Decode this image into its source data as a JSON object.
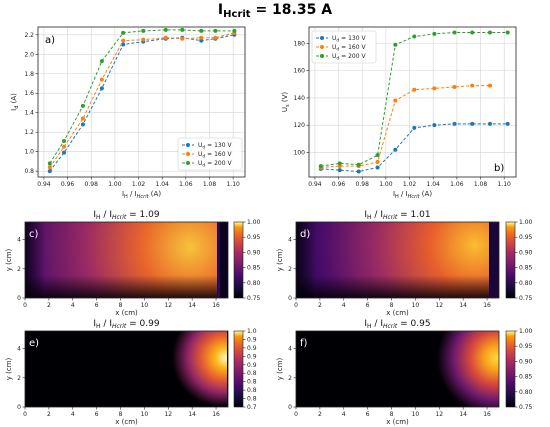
{
  "figure": {
    "title_main": "I",
    "title_sub": "Hcrit",
    "title_rest": " = 18.35 A"
  },
  "chart_data": [
    {
      "type": "line",
      "panel": "a)",
      "xlabel": {
        "main": "I",
        "sub1": "H",
        "mid": " / I",
        "sub2": "Hcrit",
        "rest": " (A)"
      },
      "ylabel": {
        "main": "I",
        "sub": "d",
        "rest": " (A)"
      },
      "xlim": [
        0.935,
        1.11
      ],
      "ylim": [
        0.74,
        2.28
      ],
      "xticks": [
        0.94,
        0.96,
        0.98,
        1.0,
        1.02,
        1.04,
        1.06,
        1.08,
        1.1
      ],
      "yticks": [
        0.8,
        1.0,
        1.2,
        1.4,
        1.6,
        1.8,
        2.0,
        2.2
      ],
      "xtick_labels": [
        "0.94",
        "0.96",
        "0.98",
        "1.00",
        "1.02",
        "1.04",
        "1.06",
        "1.08",
        "1.10"
      ],
      "ytick_labels": [
        "0.8",
        "1.0",
        "1.2",
        "1.4",
        "1.6",
        "1.8",
        "2.0",
        "2.2"
      ],
      "grid": true,
      "legend_position": "bottom-right",
      "x": [
        0.945,
        0.957,
        0.973,
        0.989,
        1.007,
        1.024,
        1.043,
        1.057,
        1.073,
        1.085,
        1.101
      ],
      "series": [
        {
          "name": "U",
          "sub": "d",
          "rest": " = 130 V",
          "color": "#1f77b4",
          "values": [
            0.8,
            0.99,
            1.28,
            1.65,
            2.1,
            2.13,
            2.16,
            2.17,
            2.14,
            2.16,
            2.2
          ]
        },
        {
          "name": "U",
          "sub": "d",
          "rest": " = 160 V",
          "color": "#ff7f0e",
          "values": [
            0.84,
            1.05,
            1.34,
            1.74,
            2.14,
            2.15,
            2.17,
            2.16,
            2.17,
            2.17,
            2.22
          ]
        },
        {
          "name": "U",
          "sub": "d",
          "rest": " = 200 V",
          "color": "#2ca02c",
          "values": [
            0.88,
            1.11,
            1.47,
            1.93,
            2.22,
            2.24,
            2.25,
            2.25,
            2.24,
            2.24,
            2.24
          ]
        }
      ]
    },
    {
      "type": "line",
      "panel": "b)",
      "xlabel": {
        "main": "I",
        "sub1": "H",
        "mid": " / I",
        "sub2": "Hcrit",
        "rest": " (A)"
      },
      "ylabel": {
        "main": "U",
        "sub": "s",
        "rest": " (V)"
      },
      "xlim": [
        0.935,
        1.11
      ],
      "ylim": [
        82,
        192
      ],
      "xticks": [
        0.94,
        0.96,
        0.98,
        1.0,
        1.02,
        1.04,
        1.06,
        1.08,
        1.1
      ],
      "yticks": [
        100,
        120,
        140,
        160,
        180
      ],
      "xtick_labels": [
        "0.94",
        "0.96",
        "0.98",
        "1.00",
        "1.02",
        "1.04",
        "1.06",
        "1.08",
        "1.10"
      ],
      "ytick_labels": [
        "100",
        "120",
        "140",
        "160",
        "180"
      ],
      "grid": true,
      "legend_position": "top-left",
      "x": [
        0.945,
        0.961,
        0.977,
        0.993,
        1.008,
        1.024,
        1.041,
        1.058,
        1.073,
        1.088,
        1.103
      ],
      "series": [
        {
          "name": "U",
          "sub": "d",
          "rest": " = 130 V",
          "color": "#1f77b4",
          "values": [
            88,
            87,
            86,
            89,
            102,
            118,
            120,
            121,
            121,
            121,
            121
          ]
        },
        {
          "name": "U",
          "sub": "d",
          "rest": " = 160 V",
          "color": "#ff7f0e",
          "values": [
            89,
            90,
            90,
            93,
            138,
            146,
            147,
            148,
            149,
            149,
            null
          ]
        },
        {
          "name": "U",
          "sub": "d",
          "rest": " = 200 V",
          "color": "#2ca02c",
          "values": [
            90,
            92,
            91,
            98,
            179,
            185,
            187,
            188,
            188,
            188,
            188
          ]
        }
      ]
    },
    {
      "type": "heatmap",
      "panel": "c)",
      "title": {
        "main": "I",
        "sub1": "H",
        "mid": " / I",
        "sub2": "Hcrit",
        "rest": " = 1.09"
      },
      "xlabel": "x (cm)",
      "ylabel": "y (cm)",
      "xlim": [
        0,
        17
      ],
      "ylim": [
        0,
        5.2
      ],
      "xticks": [
        0,
        2,
        4,
        6,
        8,
        10,
        12,
        14,
        16
      ],
      "yticks": [
        0,
        2,
        4
      ],
      "colorbar_ticks": [
        "0.75",
        "0.80",
        "0.85",
        "0.90",
        "0.95",
        "1.00"
      ],
      "colorbar_range": [
        0.75,
        1.0
      ],
      "colormap": "inferno"
    },
    {
      "type": "heatmap",
      "panel": "d)",
      "title": {
        "main": "I",
        "sub1": "H",
        "mid": " / I",
        "sub2": "Hcrit",
        "rest": " = 1.01"
      },
      "xlabel": "x (cm)",
      "ylabel": "y (cm)",
      "xlim": [
        0,
        17
      ],
      "ylim": [
        0,
        5.2
      ],
      "xticks": [
        0,
        2,
        4,
        6,
        8,
        10,
        12,
        14,
        16
      ],
      "yticks": [
        0,
        2,
        4
      ],
      "colorbar_ticks": [
        "0.75",
        "0.80",
        "0.85",
        "0.90",
        "0.95",
        "1.00"
      ],
      "colorbar_range": [
        0.75,
        1.0
      ],
      "colormap": "inferno"
    },
    {
      "type": "heatmap",
      "panel": "e)",
      "title": {
        "main": "I",
        "sub1": "H",
        "mid": " / I",
        "sub2": "Hcrit",
        "rest": " = 0.99"
      },
      "xlabel": "x (cm)",
      "ylabel": "y (cm)",
      "xlim": [
        0,
        17
      ],
      "ylim": [
        0,
        5.2
      ],
      "xticks": [
        0,
        2,
        4,
        6,
        8,
        10,
        12,
        14,
        16
      ],
      "yticks": [
        0,
        2,
        4
      ],
      "colorbar_ticks": [
        "0.7",
        "0.8",
        "0.8",
        "0.8",
        "0.8",
        "0.9",
        "0.9",
        "0.9",
        "0.9",
        "1.0"
      ],
      "colorbar_range": [
        0.7,
        1.0
      ],
      "colormap": "inferno"
    },
    {
      "type": "heatmap",
      "panel": "f)",
      "title": {
        "main": "I",
        "sub1": "H",
        "mid": " / I",
        "sub2": "Hcrit",
        "rest": " = 0.95"
      },
      "xlabel": "x (cm)",
      "ylabel": "y (cm)",
      "xlim": [
        0,
        17
      ],
      "ylim": [
        0,
        5.2
      ],
      "xticks": [
        0,
        2,
        4,
        6,
        8,
        10,
        12,
        14,
        16
      ],
      "yticks": [
        0,
        2,
        4
      ],
      "colorbar_ticks": [
        "0.75",
        "0.80",
        "0.85",
        "0.90",
        "0.95",
        "1.00"
      ],
      "colorbar_range": [
        0.75,
        1.0
      ],
      "colormap": "inferno"
    }
  ]
}
